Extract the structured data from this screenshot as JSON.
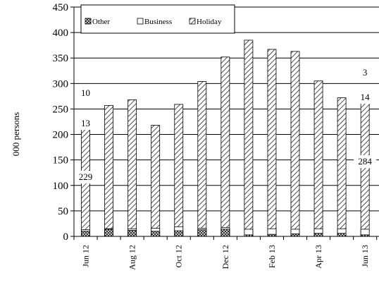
{
  "chart_data": {
    "type": "bar",
    "stacked": true,
    "title": "",
    "xlabel": "",
    "ylabel": "000 persons",
    "ylim": [
      0,
      450
    ],
    "yticks": [
      0,
      50,
      100,
      150,
      200,
      250,
      300,
      350,
      400,
      450
    ],
    "grid": "horizontal",
    "legend_position": "top-left",
    "categories": [
      "Jun 12",
      "Jul 12",
      "Aug 12",
      "Sep 12",
      "Oct 12",
      "Nov 12",
      "Dec 12",
      "Jan 13",
      "Feb 13",
      "Mar 13",
      "Apr 13",
      "May 13",
      "Jun 13"
    ],
    "x_tick_labels": [
      "Jun 12",
      "",
      "Aug 12",
      "",
      "Oct 12",
      "",
      "Dec 12",
      "",
      "Feb 13",
      "",
      "Apr 13",
      "",
      "Jun 13"
    ],
    "legend": [
      "Other",
      "Business",
      "Holiday"
    ],
    "series": [
      {
        "name": "Holiday",
        "pattern": "diagonal-hatch",
        "values": [
          229,
          257,
          268,
          218,
          259,
          304,
          352,
          385,
          367,
          363,
          305,
          272,
          284
        ]
      },
      {
        "name": "Business",
        "pattern": "white",
        "values": [
          13,
          15,
          15,
          16,
          19,
          16,
          17,
          14,
          15,
          14,
          15,
          15,
          14
        ]
      },
      {
        "name": "Other",
        "pattern": "crosshatch",
        "values": [
          10,
          14,
          12,
          10,
          11,
          13,
          14,
          3,
          4,
          5,
          6,
          6,
          3
        ]
      }
    ],
    "data_labels": [
      {
        "text": "229",
        "category": "Jun 12",
        "series": "Holiday"
      },
      {
        "text": "13",
        "category": "Jun 12",
        "series": "Business"
      },
      {
        "text": "10",
        "category": "Jun 12",
        "series": "Other"
      },
      {
        "text": "284",
        "category": "Jun 13",
        "series": "Holiday"
      },
      {
        "text": "14",
        "category": "Jun 13",
        "series": "Business"
      },
      {
        "text": "3",
        "category": "Jun 13",
        "series": "Other"
      }
    ]
  }
}
